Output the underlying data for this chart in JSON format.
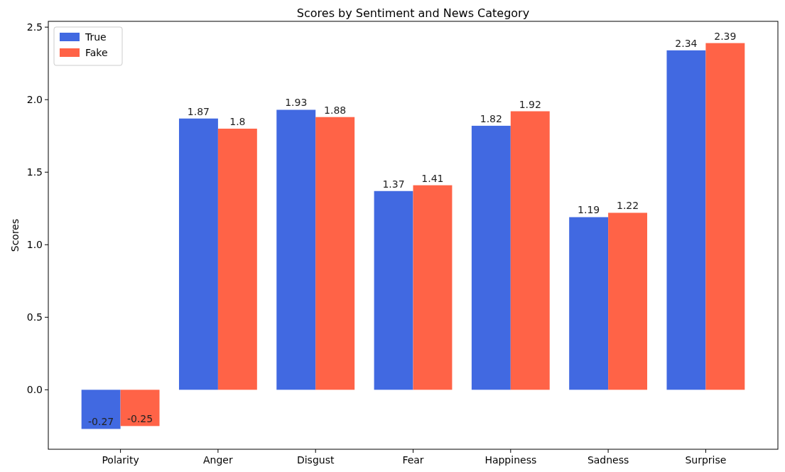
{
  "chart_data": {
    "type": "bar",
    "title": "Scores by Sentiment and News Category",
    "ylabel": "Scores",
    "categories": [
      "Polarity",
      "Anger",
      "Disgust",
      "Fear",
      "Happiness",
      "Sadness",
      "Surprise"
    ],
    "series": [
      {
        "name": "True",
        "color": "#4169e1",
        "values": [
          -0.27,
          1.87,
          1.93,
          1.37,
          1.82,
          1.19,
          2.34
        ]
      },
      {
        "name": "Fake",
        "color": "#ff6347",
        "values": [
          -0.25,
          1.8,
          1.88,
          1.41,
          1.92,
          1.22,
          2.39
        ]
      }
    ],
    "ylim": [
      -0.41,
      2.54
    ],
    "yticks": [
      {
        "value": 0,
        "label": "0.0"
      },
      {
        "value": 0.5,
        "label": "0.5"
      },
      {
        "value": 1,
        "label": "1.0"
      },
      {
        "value": 1.5,
        "label": "1.5"
      },
      {
        "value": 2,
        "label": "2.0"
      },
      {
        "value": 2.5,
        "label": "2.5"
      }
    ],
    "data_labels": true,
    "legend": "top left",
    "grid": false
  }
}
